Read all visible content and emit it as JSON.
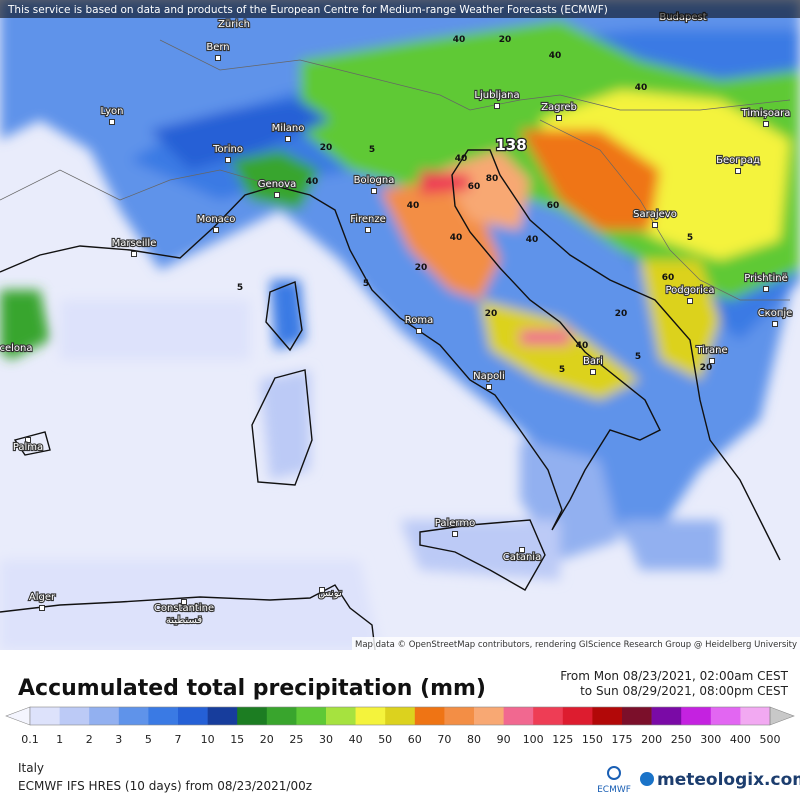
{
  "header": {
    "notice": "This service is based on data and products of the European Centre for Medium-range Weather Forecasts (ECMWF)"
  },
  "map": {
    "cities": [
      "Zürich",
      "Bern",
      "Budapest",
      "Lyon",
      "Ljubljana",
      "Zagreb",
      "Timișoara",
      "Milano",
      "Torino",
      "Београд",
      "Genova",
      "Bologna",
      "Monaco",
      "Sarajevo",
      "Firenze",
      "Marseille",
      "Prishtinë",
      "Podgorica",
      "Скопје",
      "Roma",
      "Tirane",
      "Bari",
      "Napoli",
      "Palma",
      "Palermo",
      "Catania",
      "Alger",
      "Constantine",
      "قسنطينة",
      "تونس",
      "celona"
    ],
    "contour_labels": [
      "40",
      "20",
      "40",
      "40",
      "20",
      "5",
      "40",
      "40",
      "60",
      "80",
      "40",
      "60",
      "40",
      "40",
      "20",
      "5",
      "60",
      "20",
      "20",
      "40",
      "20",
      "5",
      "5",
      "5",
      "5"
    ],
    "max_label": "138",
    "attribution": "Map data © OpenStreetMap contributors, rendering GIScience Research Group @ Heidelberg University"
  },
  "legend": {
    "title": "Accumulated total precipitation (mm)",
    "from": "From Mon 08/23/2021, 02:00am CEST",
    "to": "to Sun 08/29/2021, 08:00pm CEST",
    "labels": [
      0.1,
      1,
      2,
      3,
      5,
      7,
      10,
      15,
      20,
      25,
      30,
      40,
      50,
      60,
      70,
      80,
      90,
      100,
      125,
      150,
      175,
      200,
      250,
      300,
      400,
      500
    ],
    "below_color": "#f4f5fe",
    "above_color": "#c8c8c8",
    "colors": [
      "#dde2fb",
      "#bccaf6",
      "#92b0f0",
      "#5f93ea",
      "#3a7ae4",
      "#2560d6",
      "#173d9c",
      "#1c7d22",
      "#39a52d",
      "#5ec936",
      "#a6e23f",
      "#f4f33c",
      "#dcd21e",
      "#ef7414",
      "#f38e45",
      "#f8a873",
      "#f16890",
      "#ee3d55",
      "#dd1c2f",
      "#b20808",
      "#7b0f2a",
      "#7a0aa6",
      "#c422e0",
      "#e266f2",
      "#f2a9f2"
    ]
  },
  "footer": {
    "region": "Italy",
    "model": "ECMWF IFS HRES (10 days) from 08/23/2021/00z",
    "ecmwf": "ECMWF",
    "brand": "meteologix.com"
  }
}
